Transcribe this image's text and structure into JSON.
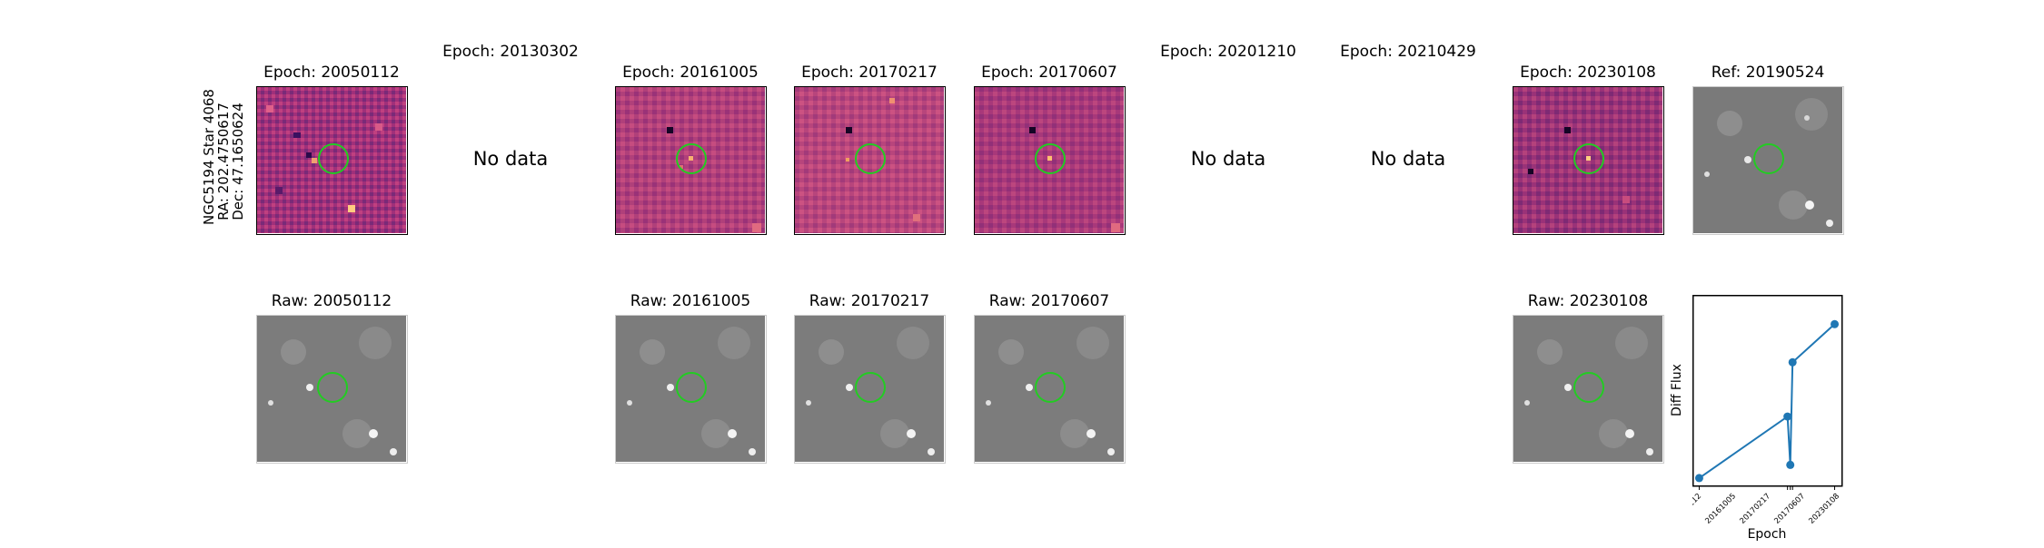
{
  "figure": {
    "star_label": "NGC5194 Star 4068",
    "ra_label": "RA: 202.4750617",
    "dec_label": "Dec: 47.1650624"
  },
  "top_row": [
    {
      "title": "Epoch: 20050112",
      "has_data": true
    },
    {
      "title": "Epoch: 20130302",
      "has_data": false,
      "no_data_text": "No data"
    },
    {
      "title": "Epoch: 20161005",
      "has_data": true
    },
    {
      "title": "Epoch: 20170217",
      "has_data": true
    },
    {
      "title": "Epoch: 20170607",
      "has_data": true
    },
    {
      "title": "Epoch: 20201210",
      "has_data": false,
      "no_data_text": "No data"
    },
    {
      "title": "Epoch: 20210429",
      "has_data": false,
      "no_data_text": "No data"
    },
    {
      "title": "Epoch: 20230108",
      "has_data": true
    },
    {
      "title": "Ref: 20190524",
      "has_data": true
    }
  ],
  "bottom_row": [
    {
      "title": "Raw: 20050112"
    },
    {
      "title": "Raw: 20161005"
    },
    {
      "title": "Raw: 20170217"
    },
    {
      "title": "Raw: 20170607"
    },
    {
      "title": "Raw: 20230108"
    }
  ],
  "chart_data": {
    "type": "line",
    "title": "",
    "xlabel": "Epoch",
    "ylabel": "Diff Flux",
    "categories": [
      "20050112",
      "20161005",
      "20170217",
      "20170607",
      "20230108"
    ],
    "x": [
      2005.03,
      2016.76,
      2017.13,
      2017.43,
      2023.02
    ],
    "values": [
      0.0,
      0.42,
      0.09,
      0.79,
      1.05
    ],
    "ylim": [
      -0.05,
      1.25
    ],
    "marker": "circle",
    "y_ticks_visible": false,
    "color": "#1f77b4"
  },
  "colors": {
    "circle": "#22cc22",
    "line": "#1f77b4"
  }
}
